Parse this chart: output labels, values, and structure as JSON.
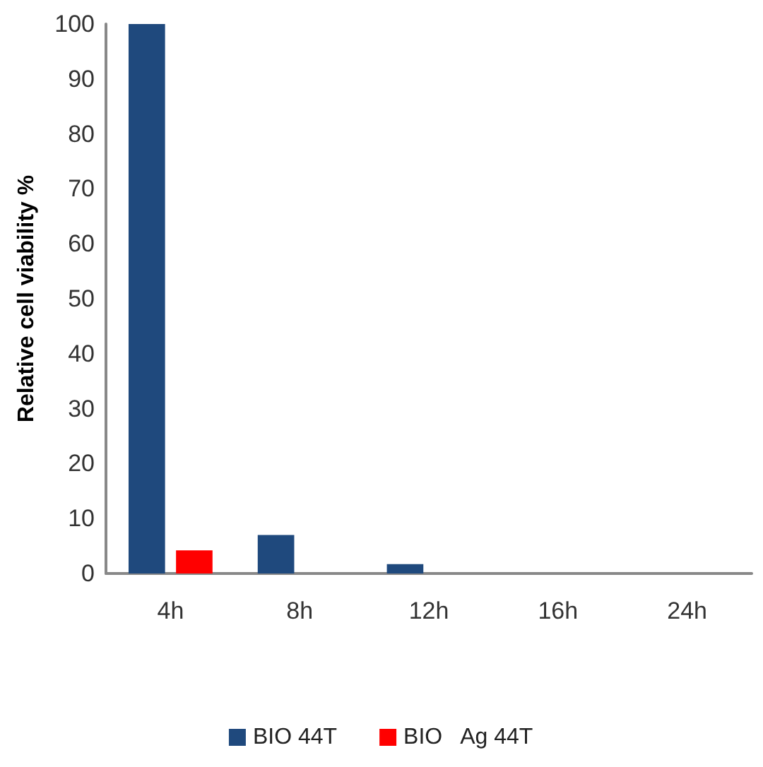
{
  "chart_data": {
    "type": "bar",
    "ylabel": "Relative cell viability %",
    "categories": [
      "4h",
      "8h",
      "12h",
      "16h",
      "24h"
    ],
    "series": [
      {
        "name": "BIO 44T",
        "color": "#1f497d",
        "values": [
          100,
          7,
          1.7,
          0,
          0
        ]
      },
      {
        "name": "BIO   Ag 44T",
        "color": "#ff0000",
        "values": [
          4.2,
          0,
          0,
          0,
          0
        ]
      }
    ],
    "ylim": [
      0,
      100
    ],
    "yticks": [
      0,
      10,
      20,
      30,
      40,
      50,
      60,
      70,
      80,
      90,
      100
    ],
    "grid": false,
    "legend": "bottom"
  }
}
